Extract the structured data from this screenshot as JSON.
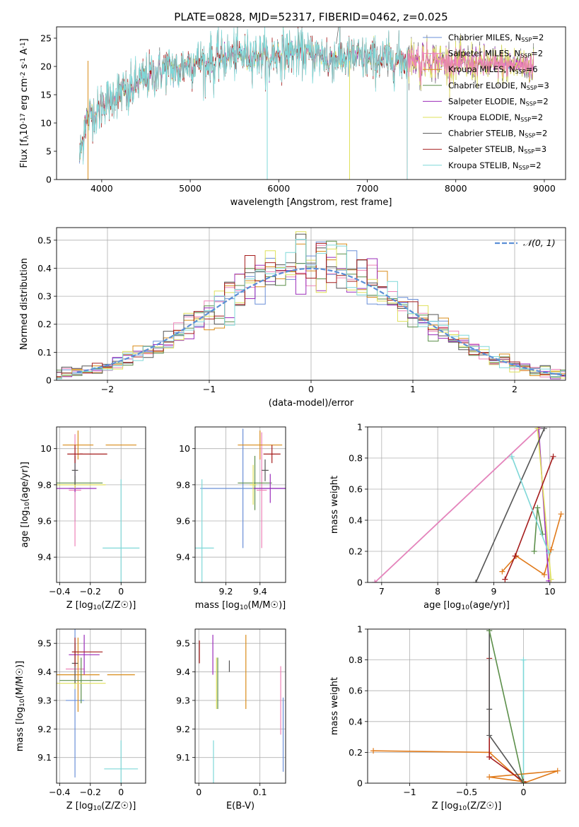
{
  "figure": {
    "colors": {
      "series": [
        "#6a8fd8",
        "#ee82b8",
        "#d98c1a",
        "#5c8f4a",
        "#9b2dba",
        "#dfe05a",
        "#555555",
        "#a51d1d",
        "#7fd8d8"
      ],
      "orange_line": "#e07a1a",
      "gaussian": "#5b8fd6",
      "grid": "#b0b0b0"
    }
  },
  "chart_data": [
    {
      "id": "spectrum",
      "type": "line",
      "title": "PLATE=0828, MJD=52317, FIBERID=0462, z=0.025",
      "xlabel": "wavelength [Angstrom, rest frame]",
      "ylabel": "Flux [f_λ10⁻¹⁷ erg cm⁻² s⁻¹ A⁻¹]",
      "xlim": [
        3490,
        9240
      ],
      "ylim": [
        0,
        27
      ],
      "xticks": [
        4000,
        5000,
        6000,
        7000,
        8000,
        9000
      ],
      "yticks": [
        0,
        5,
        10,
        15,
        20,
        25
      ],
      "grid": false,
      "legend_position": "upper-right",
      "legend": [
        {
          "label": "Chabrier MILES, N_SSP=2"
        },
        {
          "label": "Salpeter MILES, N_SSP=2"
        },
        {
          "label": "Kroupa MILES, N_SSP=6"
        },
        {
          "label": "Chabrier ELODIE, N_SSP=3"
        },
        {
          "label": "Salpeter ELODIE, N_SSP=2"
        },
        {
          "label": "Kroupa ELODIE, N_SSP=2"
        },
        {
          "label": "Chabrier STELIB, N_SSP=2"
        },
        {
          "label": "Salpeter STELIB, N_SSP=3"
        },
        {
          "label": "Kroupa STELIB, N_SSP=2"
        }
      ],
      "continuum_x": [
        3750,
        3800,
        3900,
        4000,
        4100,
        4200,
        4300,
        4400,
        4500,
        4700,
        4900,
        5100,
        5300,
        5500,
        5700,
        5900,
        6100,
        6300,
        6500,
        6700,
        6800,
        7000,
        7200,
        7400,
        7600,
        7800,
        8000,
        8200,
        8400,
        8600,
        8800
      ],
      "continuum_y": [
        6,
        10,
        12,
        13.5,
        14.5,
        15.5,
        15.5,
        17,
        18,
        19.5,
        20,
        21,
        21.5,
        22,
        22,
        22,
        22.5,
        22.3,
        21.8,
        21.5,
        21.5,
        21.3,
        21.3,
        21.2,
        21.5,
        21,
        20.5,
        20.5,
        20.3,
        20.3,
        20.2
      ],
      "model_end_x": [
        8880,
        8880,
        8880,
        8880,
        8880,
        8880,
        8880,
        8880,
        8880
      ],
      "model_end_x_short": [
        {
          "series": 7,
          "x": 7450
        },
        {
          "series": 8,
          "x": 7450
        }
      ]
    },
    {
      "id": "residuals",
      "type": "line",
      "xlabel": "(data-model)/error",
      "ylabel": "Normed distribution",
      "xlim": [
        -2.5,
        2.5
      ],
      "ylim": [
        0,
        0.545
      ],
      "xticks": [
        -2,
        -1,
        0,
        1,
        2
      ],
      "yticks": [
        0.0,
        0.1,
        0.2,
        0.3,
        0.4,
        0.5
      ],
      "grid": true,
      "legend_position": "upper-right",
      "legend": [
        {
          "label": "𝒩(0, 1)"
        }
      ],
      "bin_width": 0.1
    },
    {
      "id": "age-vs-Z",
      "type": "scatter",
      "xlabel": "Z [log₁₀(Z/Z☉)]",
      "ylabel": "age  [log₁₀(age/yr)]",
      "xlim": [
        -0.42,
        0.16
      ],
      "ylim": [
        9.26,
        10.12
      ],
      "xticks": [
        -0.4,
        -0.2,
        0.0
      ],
      "yticks": [
        9.4,
        9.6,
        9.8,
        10.0
      ],
      "grid": true,
      "points": [
        {
          "series": 0,
          "x": -0.3,
          "y": 9.78,
          "xerr": 0.04,
          "yerr": 0.18
        },
        {
          "series": 1,
          "x": -0.3,
          "y": 9.77,
          "xerr": 0.04,
          "yerr": 0.31
        },
        {
          "series": 2,
          "x": -0.28,
          "y": 10.02,
          "xerr": 0.1,
          "yerr": 0.08
        },
        {
          "series": 2,
          "x": 0.0,
          "y": 10.02,
          "xerr": 0.1,
          "yerr": 0.0
        },
        {
          "series": 3,
          "x": -0.3,
          "y": 9.81,
          "xerr": 0.18,
          "yerr": 0.04
        },
        {
          "series": 4,
          "x": -0.3,
          "y": 9.78,
          "xerr": 0.14,
          "yerr": 0.02
        },
        {
          "series": 5,
          "x": -0.3,
          "y": 9.8,
          "xerr": 0.2,
          "yerr": 0.02
        },
        {
          "series": 6,
          "x": -0.3,
          "y": 9.88,
          "xerr": 0.02,
          "yerr": 0.08
        },
        {
          "series": 7,
          "x": -0.3,
          "y": 9.97,
          "xerr": 0.05,
          "yerr": 0.05
        },
        {
          "series": 7,
          "x": -0.18,
          "y": 9.97,
          "xerr": 0.09,
          "yerr": 0.0
        },
        {
          "series": 8,
          "x": 0.0,
          "y": 9.45,
          "xerr": 0.12,
          "yerr": 0.38
        }
      ]
    },
    {
      "id": "age-vs-mass",
      "type": "scatter",
      "xlabel": "mass [log₁₀(M/M☉)]",
      "ylabel": "",
      "xlim": [
        9.02,
        9.55
      ],
      "ylim": [
        9.26,
        10.12
      ],
      "xticks": [
        9.2,
        9.4
      ],
      "yticks": [
        9.4,
        9.6,
        9.8,
        10.0
      ],
      "grid": true,
      "points": [
        {
          "series": 0,
          "x": 9.3,
          "y": 9.78,
          "xerr": 0.25,
          "yerr": 0.33
        },
        {
          "series": 1,
          "x": 9.41,
          "y": 9.77,
          "xerr": 0.03,
          "yerr": 0.32
        },
        {
          "series": 2,
          "x": 9.4,
          "y": 10.02,
          "xerr": 0.13,
          "yerr": 0.08
        },
        {
          "series": 3,
          "x": 9.37,
          "y": 9.81,
          "xerr": 0.1,
          "yerr": 0.15
        },
        {
          "series": 4,
          "x": 9.46,
          "y": 9.78,
          "xerr": 0.1,
          "yerr": 0.08
        },
        {
          "series": 5,
          "x": 9.36,
          "y": 9.8,
          "xerr": 0.02,
          "yerr": 0.11
        },
        {
          "series": 6,
          "x": 9.43,
          "y": 9.88,
          "xerr": 0.02,
          "yerr": 0.06
        },
        {
          "series": 7,
          "x": 9.47,
          "y": 9.97,
          "xerr": 0.05,
          "yerr": 0.05
        },
        {
          "series": 8,
          "x": 9.06,
          "y": 9.45,
          "xerr": 0.07,
          "yerr": 0.38
        }
      ]
    },
    {
      "id": "mass-weight-vs-age",
      "type": "line",
      "xlabel": "age  [log₁₀(age/yr)]",
      "ylabel": "mass weight",
      "xlim": [
        6.75,
        10.28
      ],
      "ylim": [
        0,
        1
      ],
      "xticks": [
        7,
        8,
        9,
        10
      ],
      "yticks": [
        0.0,
        0.2,
        0.4,
        0.6,
        0.8,
        1.0
      ],
      "grid": true,
      "series": [
        {
          "series": 0,
          "x": [
            6.88,
            9.82
          ],
          "y": [
            0.0,
            1.0
          ]
        },
        {
          "series": 1,
          "x": [
            6.88,
            9.82
          ],
          "y": [
            0.0,
            1.0
          ]
        },
        {
          "series": 2,
          "x": [
            9.15,
            9.4,
            9.9,
            10.02,
            10.2
          ],
          "y": [
            0.07,
            0.17,
            0.05,
            0.21,
            0.44
          ]
        },
        {
          "series": 3,
          "x": [
            9.72,
            9.78,
            9.87
          ],
          "y": [
            0.2,
            0.48,
            0.31
          ]
        },
        {
          "series": 4,
          "x": [
            9.8,
            9.98
          ],
          "y": [
            0.99,
            0.01
          ]
        },
        {
          "series": 5,
          "x": [
            9.78,
            10.02
          ],
          "y": [
            0.99,
            0.02
          ]
        },
        {
          "series": 6,
          "x": [
            8.68,
            9.9
          ],
          "y": [
            0.0,
            0.99
          ]
        },
        {
          "series": 7,
          "x": [
            9.2,
            9.38,
            10.06
          ],
          "y": [
            0.02,
            0.17,
            0.81
          ]
        },
        {
          "series": 8,
          "x": [
            9.32,
            9.98
          ],
          "y": [
            0.81,
            0.19
          ]
        }
      ]
    },
    {
      "id": "mass-vs-Z",
      "type": "scatter",
      "xlabel": "Z [log₁₀(Z/Z☉)]",
      "ylabel": "mass [log₁₀(M/M☉)]",
      "xlim": [
        -0.42,
        0.16
      ],
      "ylim": [
        9.01,
        9.55
      ],
      "xticks": [
        -0.4,
        -0.2,
        0.0
      ],
      "yticks": [
        9.1,
        9.2,
        9.3,
        9.4,
        9.5
      ],
      "grid": true,
      "points": [
        {
          "series": 0,
          "x": -0.3,
          "y": 9.3,
          "xerr": 0.06,
          "yerr": 0.27
        },
        {
          "series": 1,
          "x": -0.3,
          "y": 9.41,
          "xerr": 0.06,
          "yerr": 0.03
        },
        {
          "series": 2,
          "x": -0.28,
          "y": 9.39,
          "xerr": 0.14,
          "yerr": 0.13
        },
        {
          "series": 2,
          "x": 0.0,
          "y": 9.39,
          "xerr": 0.09,
          "yerr": 0.0
        },
        {
          "series": 3,
          "x": -0.26,
          "y": 9.37,
          "xerr": 0.14,
          "yerr": 0.08
        },
        {
          "series": 4,
          "x": -0.24,
          "y": 9.46,
          "xerr": 0.1,
          "yerr": 0.07
        },
        {
          "series": 5,
          "x": -0.3,
          "y": 9.36,
          "xerr": 0.2,
          "yerr": 0.02
        },
        {
          "series": 6,
          "x": -0.3,
          "y": 9.43,
          "xerr": 0.02,
          "yerr": 0.07
        },
        {
          "series": 7,
          "x": -0.3,
          "y": 9.47,
          "xerr": 0.02,
          "yerr": 0.05
        },
        {
          "series": 7,
          "x": -0.2,
          "y": 9.47,
          "xerr": 0.08,
          "yerr": 0.0
        },
        {
          "series": 8,
          "x": 0.0,
          "y": 9.06,
          "xerr": 0.11,
          "yerr": 0.1
        }
      ]
    },
    {
      "id": "mass-vs-ebv",
      "type": "scatter",
      "xlabel": "E(B-V)",
      "ylabel": "",
      "xlim": [
        -0.006,
        0.142
      ],
      "ylim": [
        9.01,
        9.55
      ],
      "xticks": [
        0.0,
        0.1
      ],
      "yticks": [
        9.1,
        9.2,
        9.3,
        9.4,
        9.5
      ],
      "grid": true,
      "points": [
        {
          "series": 0,
          "x": 0.138,
          "y": 9.18,
          "xerr": 0.0,
          "yerr": 0.13
        },
        {
          "series": 1,
          "x": 0.134,
          "y": 9.3,
          "xerr": 0.0,
          "yerr": 0.12
        },
        {
          "series": 2,
          "x": 0.077,
          "y": 9.4,
          "xerr": 0.0,
          "yerr": 0.13
        },
        {
          "series": 3,
          "x": 0.031,
          "y": 9.36,
          "xerr": 0.0,
          "yerr": 0.09
        },
        {
          "series": 4,
          "x": 0.023,
          "y": 9.46,
          "xerr": 0.0,
          "yerr": 0.07
        },
        {
          "series": 5,
          "x": 0.029,
          "y": 9.36,
          "xerr": 0.0,
          "yerr": 0.09
        },
        {
          "series": 6,
          "x": 0.05,
          "y": 9.42,
          "xerr": 0.0,
          "yerr": 0.02
        },
        {
          "series": 7,
          "x": 0.001,
          "y": 9.47,
          "xerr": 0.0,
          "yerr": 0.04
        },
        {
          "series": 8,
          "x": 0.024,
          "y": 9.06,
          "xerr": 0.0,
          "yerr": 0.1
        }
      ]
    },
    {
      "id": "mass-weight-vs-Z",
      "type": "line",
      "xlabel": "Z [log₁₀(Z/Z☉)]",
      "ylabel": "mass weight",
      "xlim": [
        -1.37,
        0.37
      ],
      "ylim": [
        0,
        1
      ],
      "xticks": [
        -1.0,
        -0.5,
        0.0
      ],
      "yticks": [
        0.0,
        0.2,
        0.4,
        0.6,
        0.8,
        1.0
      ],
      "grid": true,
      "series": [
        {
          "series": 8,
          "x": [
            0.0,
            0.0
          ],
          "y": [
            0.8,
            0.0
          ]
        },
        {
          "series": 2,
          "x": [
            -1.32,
            -0.3,
            0.0,
            0.3,
            -0.3,
            0.0
          ],
          "y": [
            0.21,
            0.2,
            0.0,
            0.08,
            0.04,
            0.01
          ]
        },
        {
          "series": 7,
          "x": [
            -0.3,
            -0.3,
            -0.3,
            0.0
          ],
          "y": [
            0.81,
            0.17,
            0.17,
            0.01
          ]
        },
        {
          "series": 6,
          "x": [
            -0.3,
            -0.3,
            -0.3,
            0.0
          ],
          "y": [
            0.99,
            0.48,
            0.31,
            0.0
          ]
        },
        {
          "series": 3,
          "x": [
            -0.3,
            0.0
          ],
          "y": [
            0.99,
            0.0
          ]
        }
      ]
    }
  ]
}
